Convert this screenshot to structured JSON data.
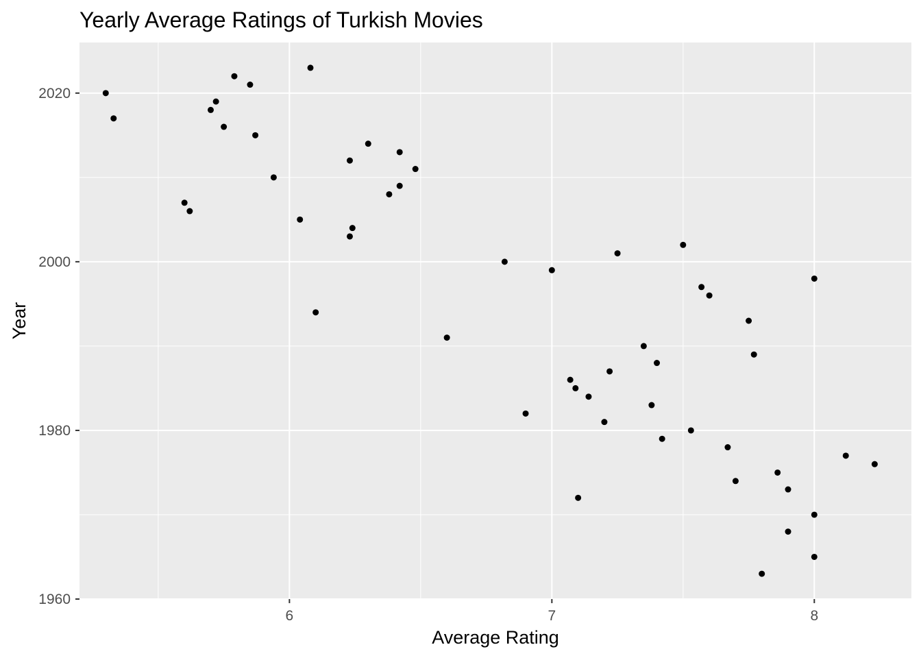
{
  "chart_data": {
    "type": "scatter",
    "title": "Yearly Average Ratings of Turkish Movies",
    "xlabel": "Average Rating",
    "ylabel": "Year",
    "xlim": [
      5.2,
      8.37
    ],
    "ylim": [
      1960,
      2026
    ],
    "x_ticks": [
      6,
      7,
      8
    ],
    "y_ticks": [
      1960,
      1980,
      2000,
      2020
    ],
    "grid": true,
    "legend": "none",
    "colors": {
      "panel": "#ebebeb",
      "grid": "#ffffff",
      "point": "#000000",
      "tick_text": "#4d4d4d",
      "tick_mark": "#333333"
    },
    "points": [
      {
        "x": 5.3,
        "y": 2020
      },
      {
        "x": 5.33,
        "y": 2017
      },
      {
        "x": 5.6,
        "y": 2007
      },
      {
        "x": 5.62,
        "y": 2006
      },
      {
        "x": 5.7,
        "y": 2018
      },
      {
        "x": 5.72,
        "y": 2019
      },
      {
        "x": 5.75,
        "y": 2016
      },
      {
        "x": 5.79,
        "y": 2022
      },
      {
        "x": 5.85,
        "y": 2021
      },
      {
        "x": 5.87,
        "y": 2015
      },
      {
        "x": 5.94,
        "y": 2010
      },
      {
        "x": 6.04,
        "y": 2005
      },
      {
        "x": 6.08,
        "y": 2023
      },
      {
        "x": 6.1,
        "y": 1994
      },
      {
        "x": 6.23,
        "y": 2003
      },
      {
        "x": 6.23,
        "y": 2012
      },
      {
        "x": 6.24,
        "y": 2004
      },
      {
        "x": 6.3,
        "y": 2014
      },
      {
        "x": 6.38,
        "y": 2008
      },
      {
        "x": 6.42,
        "y": 2009
      },
      {
        "x": 6.42,
        "y": 2013
      },
      {
        "x": 6.48,
        "y": 2011
      },
      {
        "x": 6.6,
        "y": 1991
      },
      {
        "x": 6.82,
        "y": 2000
      },
      {
        "x": 6.9,
        "y": 1982
      },
      {
        "x": 7.0,
        "y": 1999
      },
      {
        "x": 7.07,
        "y": 1986
      },
      {
        "x": 7.09,
        "y": 1985
      },
      {
        "x": 7.1,
        "y": 1972
      },
      {
        "x": 7.14,
        "y": 1984
      },
      {
        "x": 7.2,
        "y": 1981
      },
      {
        "x": 7.22,
        "y": 1987
      },
      {
        "x": 7.25,
        "y": 2001
      },
      {
        "x": 7.35,
        "y": 1990
      },
      {
        "x": 7.38,
        "y": 1983
      },
      {
        "x": 7.4,
        "y": 1988
      },
      {
        "x": 7.42,
        "y": 1979
      },
      {
        "x": 7.5,
        "y": 2002
      },
      {
        "x": 7.53,
        "y": 1980
      },
      {
        "x": 7.57,
        "y": 1997
      },
      {
        "x": 7.6,
        "y": 1996
      },
      {
        "x": 7.67,
        "y": 1978
      },
      {
        "x": 7.7,
        "y": 1974
      },
      {
        "x": 7.75,
        "y": 1993
      },
      {
        "x": 7.77,
        "y": 1989
      },
      {
        "x": 7.8,
        "y": 1963
      },
      {
        "x": 7.86,
        "y": 1975
      },
      {
        "x": 7.9,
        "y": 1968
      },
      {
        "x": 7.9,
        "y": 1973
      },
      {
        "x": 8.0,
        "y": 1998
      },
      {
        "x": 8.0,
        "y": 1970
      },
      {
        "x": 8.0,
        "y": 1965
      },
      {
        "x": 8.12,
        "y": 1977
      },
      {
        "x": 8.23,
        "y": 1976
      }
    ]
  }
}
